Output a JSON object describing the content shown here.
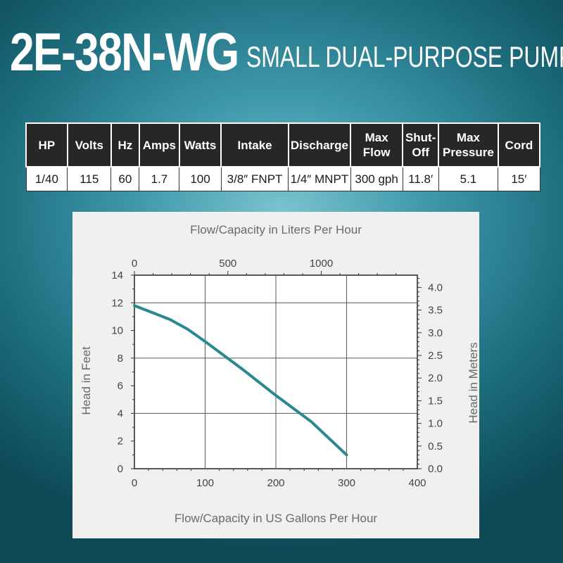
{
  "header": {
    "model": "2E-38N-WG",
    "subtitle": "SMALL DUAL-PURPOSE PUMP"
  },
  "specs": {
    "headers": [
      {
        "l1": "HP",
        "l2": ""
      },
      {
        "l1": "Volts",
        "l2": ""
      },
      {
        "l1": "Hz",
        "l2": ""
      },
      {
        "l1": "Amps",
        "l2": ""
      },
      {
        "l1": "Watts",
        "l2": ""
      },
      {
        "l1": "Intake",
        "l2": ""
      },
      {
        "l1": "Discharge",
        "l2": ""
      },
      {
        "l1": "Max",
        "l2": "Flow"
      },
      {
        "l1": "Shut-",
        "l2": "Off"
      },
      {
        "l1": "Max",
        "l2": "Pressure"
      },
      {
        "l1": "Cord",
        "l2": ""
      }
    ],
    "values": [
      "1/40",
      "115",
      "60",
      "1.7",
      "100",
      "3/8″ FNPT",
      "1/4″ MNPT",
      "300 gph",
      "11.8′",
      "5.1",
      "15′"
    ]
  },
  "chart_data": {
    "type": "line",
    "title": "",
    "xlabel": "Flow/Capacity in US Gallons Per Hour",
    "ylabel": "Head in Feet",
    "x2label": "Flow/Capacity in Liters Per Hour",
    "y2label": "Head in Meters",
    "xlim": [
      0,
      400
    ],
    "ylim": [
      0,
      14
    ],
    "x2lim": [
      0,
      1514
    ],
    "y2lim": [
      0,
      4.27
    ],
    "xticks": [
      "0",
      "100",
      "200",
      "300",
      "400"
    ],
    "yticks": [
      "0",
      "2",
      "4",
      "6",
      "8",
      "10",
      "12",
      "14"
    ],
    "x2ticks": [
      "0",
      "500",
      "1000"
    ],
    "y2ticks": [
      "0.0",
      "0.5",
      "1.0",
      "1.5",
      "2.0",
      "2.5",
      "3.0",
      "3.5",
      "4.0"
    ],
    "grid": true,
    "line_color": "#2a8891",
    "series": [
      {
        "name": "",
        "x": [
          0,
          25,
          50,
          75,
          100,
          150,
          200,
          250,
          300
        ],
        "y": [
          11.8,
          11.3,
          10.8,
          10.1,
          9.2,
          7.3,
          5.3,
          3.4,
          1.0
        ]
      }
    ]
  }
}
